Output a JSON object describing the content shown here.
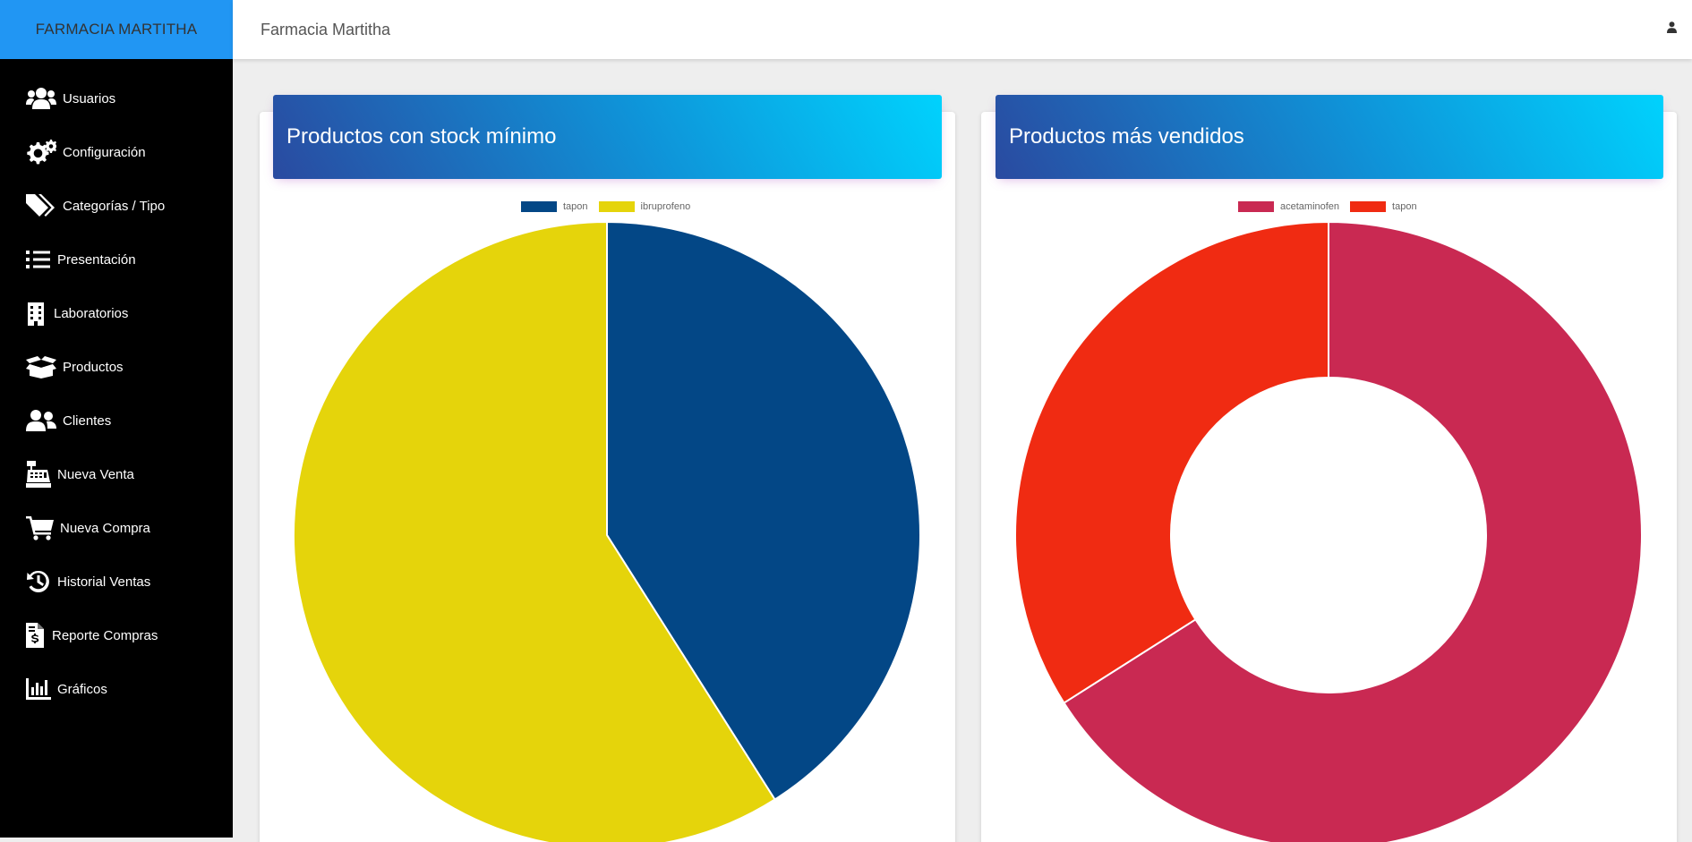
{
  "brand": {
    "name": "FARMACIA MARTITHA"
  },
  "header": {
    "title": "Farmacia Martitha",
    "user_icon": "user-icon"
  },
  "sidebar": {
    "items": [
      {
        "label": "Usuarios",
        "icon": "users-icon"
      },
      {
        "label": "Configuración",
        "icon": "gears-icon"
      },
      {
        "label": "Categorías / Tipo",
        "icon": "tags-icon"
      },
      {
        "label": "Presentación",
        "icon": "list-icon"
      },
      {
        "label": "Laboratorios",
        "icon": "building-icon"
      },
      {
        "label": "Productos",
        "icon": "box-open-icon"
      },
      {
        "label": "Clientes",
        "icon": "user-friends-icon"
      },
      {
        "label": "Nueva Venta",
        "icon": "cash-register-icon"
      },
      {
        "label": "Nueva Compra",
        "icon": "shopping-cart-icon"
      },
      {
        "label": "Historial Ventas",
        "icon": "history-icon"
      },
      {
        "label": "Reporte Compras",
        "icon": "file-invoice-dollar-icon"
      },
      {
        "label": "Gráficos",
        "icon": "chart-bar-icon"
      }
    ]
  },
  "colors": {
    "brand": "#2196f3",
    "sidebar": "#000000",
    "tapon_stock": "#034786",
    "ibruprofeno": "#e5d40b",
    "acetaminofen": "#c92952",
    "tapon_sales": "#f02b12"
  },
  "cards": [
    {
      "title": "Productos con stock mínimo"
    },
    {
      "title": "Productos más vendidos"
    }
  ],
  "chart_data": [
    {
      "type": "pie",
      "title": "Productos con stock mínimo",
      "legend_position": "top",
      "categories": [
        "tapon",
        "ibruprofeno"
      ],
      "values": [
        41,
        59
      ],
      "colors": [
        "#034786",
        "#e5d40b"
      ]
    },
    {
      "type": "doughnut",
      "title": "Productos más vendidos",
      "legend_position": "top",
      "categories": [
        "acetaminofen",
        "tapon"
      ],
      "values": [
        66,
        34
      ],
      "colors": [
        "#c92952",
        "#f02b12"
      ]
    }
  ]
}
